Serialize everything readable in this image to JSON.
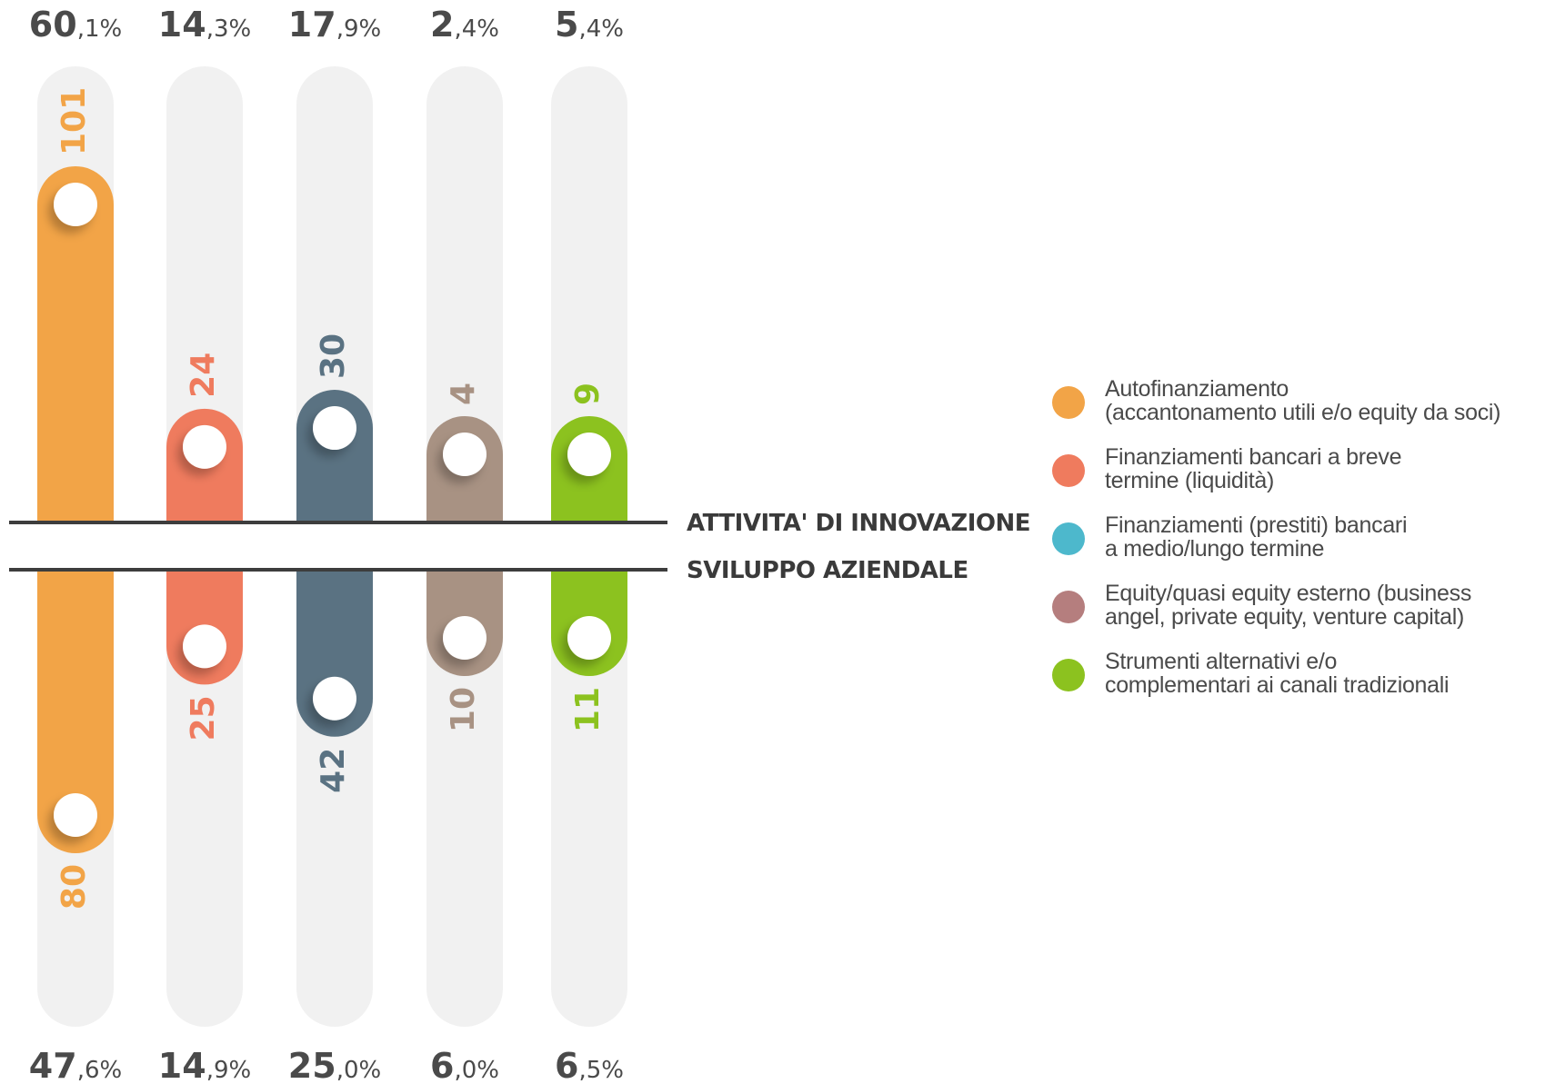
{
  "chart_data": {
    "type": "bar",
    "layout": "diverging",
    "sections": {
      "top": "ATTIVITA' DI INNOVAZIONE",
      "bottom": "SVILUPPO AZIENDALE"
    },
    "max_value": 101,
    "categories": [
      {
        "name": "Autofinanziamento (accantonamento utili e/o equity da soci)",
        "color": "#f2a447",
        "innovazione": 101,
        "sviluppo": 80,
        "innovazione_pct": {
          "int": "60",
          "dec": ",1%"
        },
        "sviluppo_pct": {
          "int": "47",
          "dec": ",6%"
        }
      },
      {
        "name": "Finanziamenti bancari a breve termine (liquidità)",
        "color": "#ef7b5e",
        "innovazione": 24,
        "sviluppo": 25,
        "innovazione_pct": {
          "int": "14",
          "dec": ",3%"
        },
        "sviluppo_pct": {
          "int": "14",
          "dec": ",9%"
        }
      },
      {
        "name": "Finanziamenti (prestiti) bancari a medio/lungo termine",
        "color": "#5a7282",
        "innovazione": 30,
        "sviluppo": 42,
        "innovazione_pct": {
          "int": "17",
          "dec": ",9%"
        },
        "sviluppo_pct": {
          "int": "25",
          "dec": ",0%"
        }
      },
      {
        "name": "Equity/quasi equity esterno (business angel, private equity, venture capital)",
        "color": "#a89283",
        "innovazione": 4,
        "sviluppo": 10,
        "innovazione_pct": {
          "int": "2",
          "dec": ",4%"
        },
        "sviluppo_pct": {
          "int": "6",
          "dec": ",0%"
        }
      },
      {
        "name": "Strumenti alternativi e/o complementari ai canali tradizionali",
        "color": "#8cc21f",
        "innovazione": 9,
        "sviluppo": 11,
        "innovazione_pct": {
          "int": "5",
          "dec": ",4%"
        },
        "sviluppo_pct": {
          "int": "6",
          "dec": ",5%"
        }
      }
    ]
  },
  "legend": [
    {
      "line1": "Autofinanziamento",
      "line2": "(accantonamento utili e/o equity da soci)",
      "color": "#f2a447"
    },
    {
      "line1": "Finanziamenti bancari a breve",
      "line2": "termine (liquidità)",
      "color": "#ef7b5e"
    },
    {
      "line1": "Finanziamenti (prestiti) bancari",
      "line2": "a medio/lungo termine",
      "color": "#4db8cc"
    },
    {
      "line1": "Equity/quasi equity esterno (business",
      "line2": "angel, private equity, venture capital)",
      "color": "#b57e7e"
    },
    {
      "line1": "Strumenti alternativi e/o",
      "line2": "complementari ai canali tradizionali",
      "color": "#8cc21f"
    }
  ]
}
